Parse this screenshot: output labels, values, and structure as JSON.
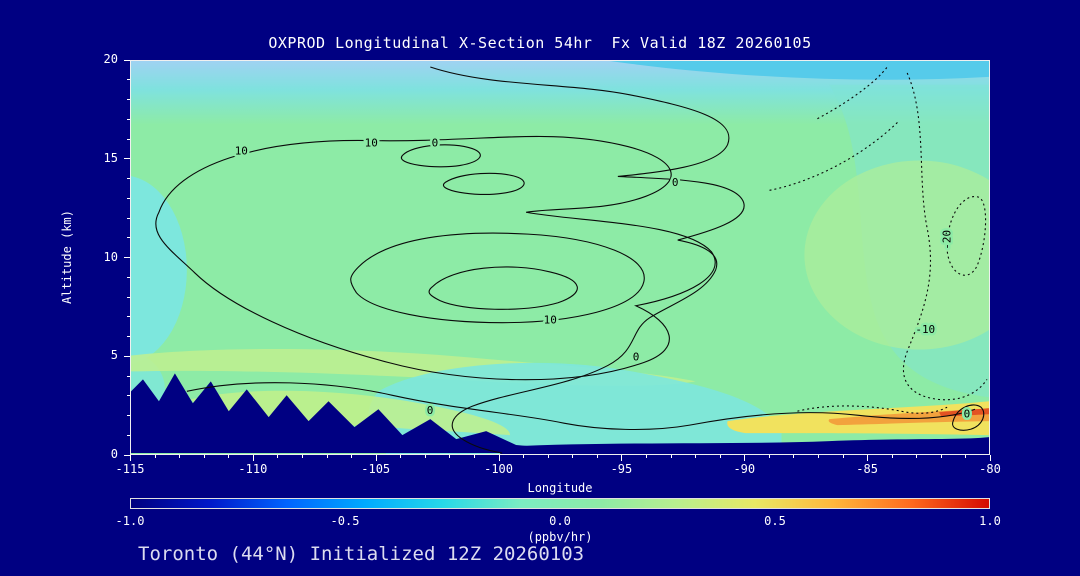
{
  "chart_data": {
    "type": "contour",
    "title": "OXPROD Longitudinal X-Section 54hr  Fx Valid 18Z 20260105",
    "footnote": "Toronto (44°N) Initialized 12Z 20260103",
    "xlabel": "Longitude",
    "ylabel": "Altitude (km)",
    "xlim": [
      -115,
      -80
    ],
    "ylim": [
      0,
      20
    ],
    "x_ticks": [
      "-115",
      "-110",
      "-105",
      "-100",
      "-95",
      "-90",
      "-85",
      "-80"
    ],
    "x_minor_step": 1,
    "y_ticks": [
      "0",
      "5",
      "10",
      "15",
      "20"
    ],
    "y_minor_step": 1,
    "contour_levels_labeled": [
      -20,
      -10,
      0,
      10
    ],
    "contour_style": {
      "positive": "solid",
      "negative": "dotted",
      "color": "#000000"
    },
    "contour_labels": [
      {
        "text": "10",
        "lon": -110.5,
        "alt": 15.4
      },
      {
        "text": "10",
        "lon": -105.2,
        "alt": 15.8
      },
      {
        "text": "0",
        "lon": -102.6,
        "alt": 15.8
      },
      {
        "text": "0",
        "lon": -92.8,
        "alt": 13.8
      },
      {
        "text": "10",
        "lon": -97.9,
        "alt": 6.8
      },
      {
        "text": "0",
        "lon": -94.4,
        "alt": 4.9
      },
      {
        "text": "0",
        "lon": -102.8,
        "alt": 2.2
      },
      {
        "text": "-10",
        "lon": -82.6,
        "alt": 6.3
      },
      {
        "text": "-20",
        "lon": -81.7,
        "alt": 10.9,
        "rotate": -90
      },
      {
        "text": "0",
        "lon": -80.9,
        "alt": 2.0
      }
    ],
    "colorbar": {
      "label": "(ppbv/hr)",
      "min": -1.0,
      "max": 1.0,
      "ticks": [
        "-1.0",
        "-0.5",
        "0.0",
        "0.5",
        "1.0"
      ],
      "gradient": [
        "#00007F",
        "#0018C8",
        "#0064FF",
        "#00AAFF",
        "#27D8E8",
        "#7BEDC2",
        "#8DEBA6",
        "#B8EF8E",
        "#E8E864",
        "#FFB83C",
        "#FF6A1E",
        "#D40A00"
      ]
    },
    "fill_colors": {
      "background_green": "#8DEBA6",
      "cyan": "#7DE7DD",
      "top_blue": "#9FD2F2",
      "yellow_green": "#BFF08F",
      "yellow": "#F1E25E",
      "orange": "#F2A23D",
      "terrain_navy": "#000082"
    },
    "page_background": "#000082"
  }
}
